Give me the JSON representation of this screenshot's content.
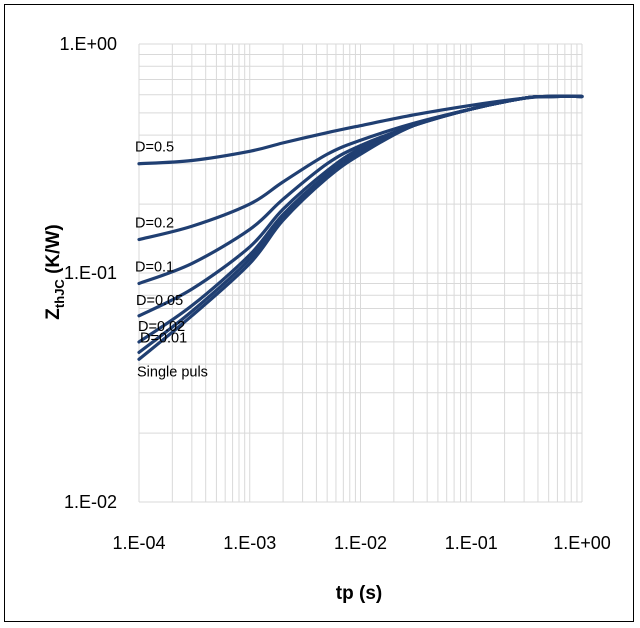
{
  "chart_data": {
    "type": "line",
    "title": "",
    "xlabel": "tp (s)",
    "ylabel": "Z",
    "ylabel_sub": "thJC",
    "ylabel_unit": " (K/W)",
    "x_scale": "log",
    "y_scale": "log",
    "xlim": [
      0.0001,
      1
    ],
    "ylim": [
      0.01,
      1
    ],
    "x_ticks": [
      "1.E-04",
      "1.E-03",
      "1.E-02",
      "1.E-01",
      "1.E+00"
    ],
    "y_ticks": [
      "1.E-02",
      "1.E-01",
      "1.E+00"
    ],
    "grid": true,
    "legend": "none",
    "line_color": "#203f72",
    "grid_color": "#d9d9d9",
    "series": [
      {
        "name": "D=0.5",
        "x": [
          0.0001,
          0.0003,
          0.001,
          0.002,
          0.005,
          0.01,
          0.03,
          0.1,
          0.3,
          0.5,
          1
        ],
        "y": [
          0.3,
          0.31,
          0.34,
          0.37,
          0.41,
          0.44,
          0.49,
          0.54,
          0.58,
          0.59,
          0.59
        ]
      },
      {
        "name": "D=0.2",
        "x": [
          0.0001,
          0.0003,
          0.001,
          0.002,
          0.005,
          0.01,
          0.03,
          0.1,
          0.3,
          0.5,
          1
        ],
        "y": [
          0.14,
          0.16,
          0.2,
          0.25,
          0.33,
          0.38,
          0.45,
          0.52,
          0.58,
          0.59,
          0.59
        ]
      },
      {
        "name": "D=0.1",
        "x": [
          0.0001,
          0.0003,
          0.001,
          0.002,
          0.005,
          0.01,
          0.03,
          0.1,
          0.3,
          0.5,
          1
        ],
        "y": [
          0.09,
          0.11,
          0.155,
          0.21,
          0.3,
          0.36,
          0.44,
          0.52,
          0.58,
          0.59,
          0.59
        ]
      },
      {
        "name": "D=0.05",
        "x": [
          0.0001,
          0.0003,
          0.001,
          0.002,
          0.005,
          0.01,
          0.03,
          0.1,
          0.3,
          0.5,
          1
        ],
        "y": [
          0.065,
          0.085,
          0.13,
          0.19,
          0.28,
          0.35,
          0.44,
          0.52,
          0.58,
          0.59,
          0.59
        ]
      },
      {
        "name": "D=0.02",
        "x": [
          0.0001,
          0.0003,
          0.001,
          0.002,
          0.005,
          0.01,
          0.03,
          0.1,
          0.3,
          0.5,
          1
        ],
        "y": [
          0.05,
          0.072,
          0.12,
          0.18,
          0.27,
          0.34,
          0.44,
          0.52,
          0.58,
          0.59,
          0.59
        ]
      },
      {
        "name": "D=0.01",
        "x": [
          0.0001,
          0.0003,
          0.001,
          0.002,
          0.005,
          0.01,
          0.03,
          0.1,
          0.3,
          0.5,
          1
        ],
        "y": [
          0.045,
          0.068,
          0.115,
          0.175,
          0.265,
          0.335,
          0.44,
          0.52,
          0.58,
          0.59,
          0.59
        ]
      },
      {
        "name": "Single puls",
        "x": [
          0.0001,
          0.0003,
          0.001,
          0.002,
          0.005,
          0.01,
          0.03,
          0.1,
          0.3,
          0.5,
          1
        ],
        "y": [
          0.042,
          0.065,
          0.11,
          0.17,
          0.26,
          0.33,
          0.44,
          0.52,
          0.58,
          0.59,
          0.59
        ]
      }
    ]
  }
}
